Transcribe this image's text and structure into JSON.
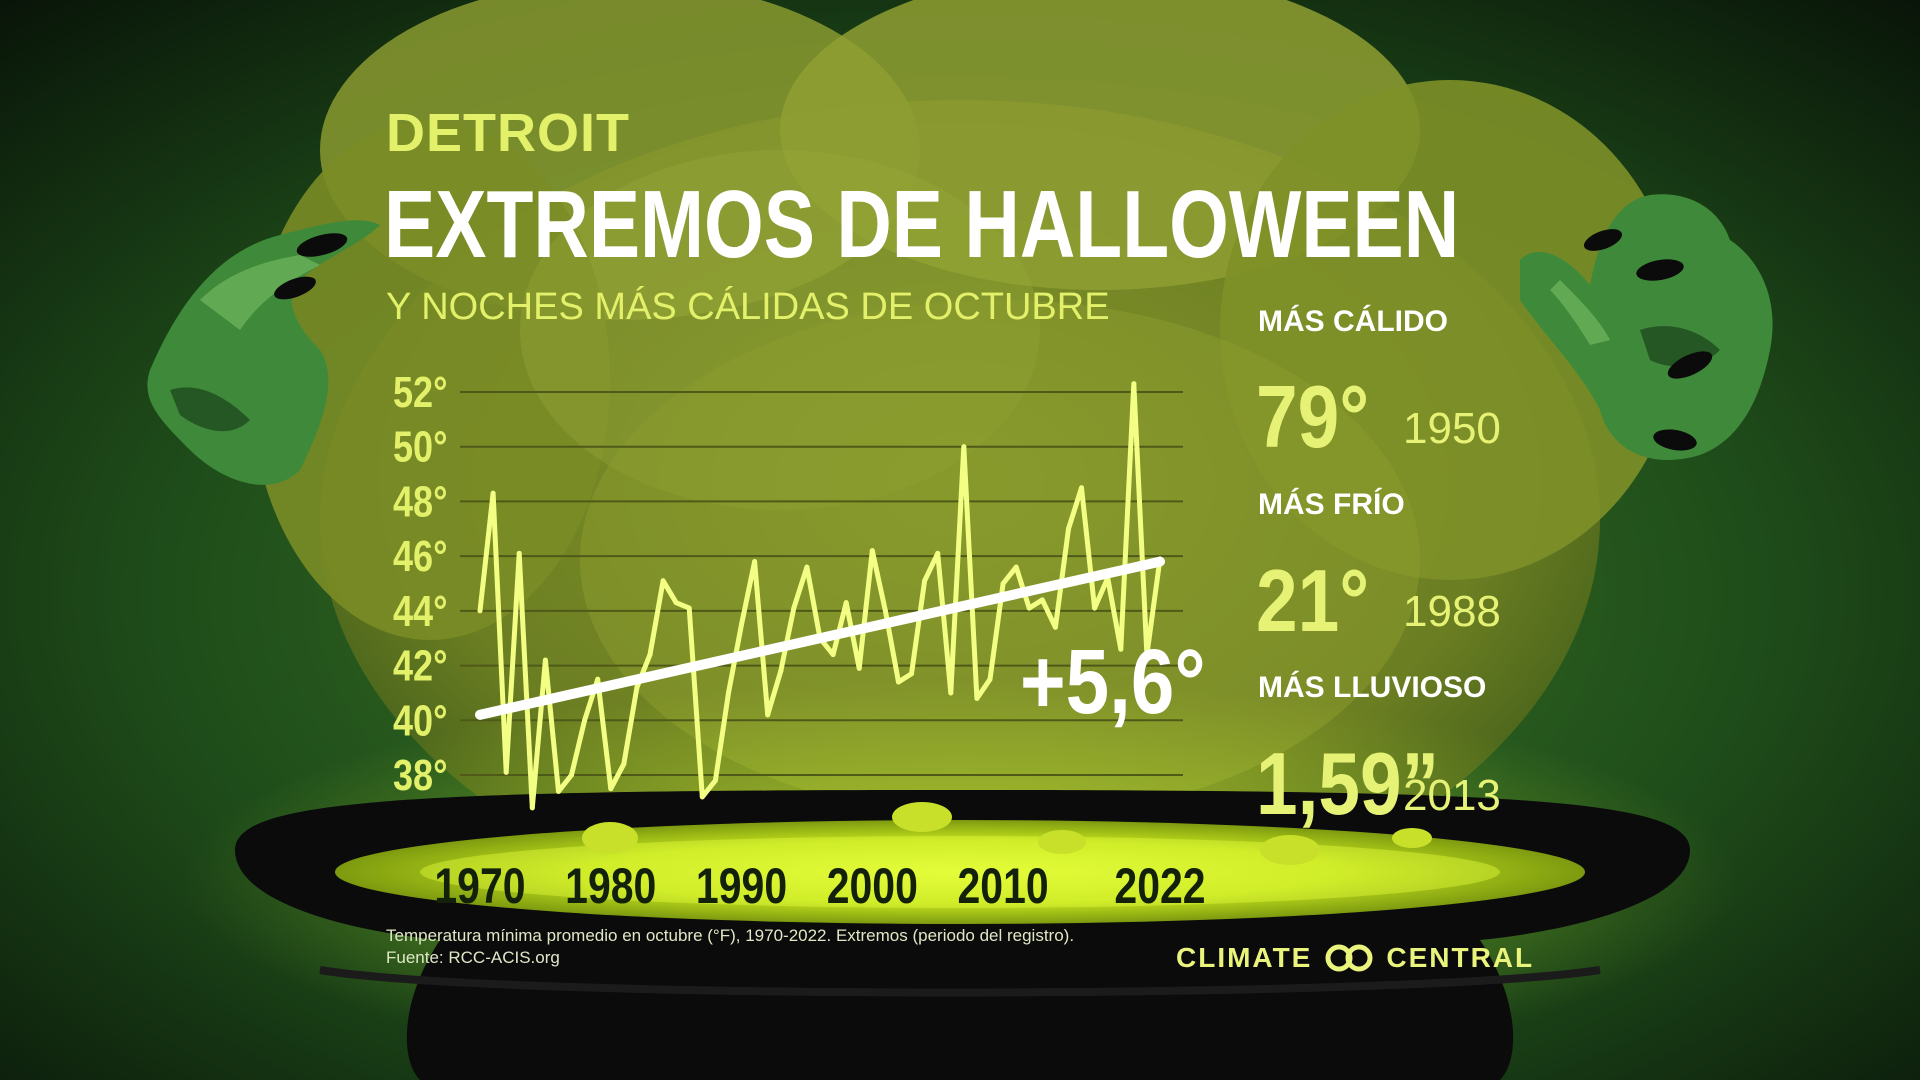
{
  "header": {
    "city": "DETROIT",
    "title": "EXTREMOS DE HALLOWEEN",
    "subtitle": "Y NOCHES MÁS CÁLIDAS DE OCTUBRE"
  },
  "stats": {
    "warmest": {
      "label": "MÁS CÁLIDO",
      "value": "79°",
      "year": "1950"
    },
    "coldest": {
      "label": "MÁS FRÍO",
      "value": "21°",
      "year": "1988"
    },
    "wettest": {
      "label": "MÁS LLUVIOSO",
      "value": "1,59”",
      "year": "2013"
    }
  },
  "footnote": {
    "line1": "Temperatura mínima promedio en octubre (°F), 1970-2022. Extremos (periodo del registro).",
    "line2": "Fuente: RCC-ACIS.org"
  },
  "brand": {
    "left": "CLIMATE",
    "right": "CENTRAL",
    "logo_icon": "interlocking-rings-icon"
  },
  "colors": {
    "accent": "#e2f06a",
    "line": "#f3ff84",
    "trend": "#ffffff",
    "gridline": "#4f5a18"
  },
  "chart_data": {
    "type": "line",
    "trend_label": "+5,6°",
    "y_ticks": [
      38,
      40,
      42,
      44,
      46,
      48,
      50,
      52
    ],
    "y_tick_labels": [
      "38°",
      "40°",
      "42°",
      "44°",
      "46°",
      "48°",
      "50°",
      "52°"
    ],
    "x_tick_labels": [
      "1970",
      "1980",
      "1990",
      "2000",
      "2010",
      "2022"
    ],
    "x_tick_values": [
      1970,
      1980,
      1990,
      2000,
      2010,
      2022
    ],
    "xlim": [
      1970,
      2022
    ],
    "ylim": [
      36.5,
      52.5
    ],
    "grid": true,
    "series": [
      {
        "x": [
          1970,
          1971,
          1972,
          1973,
          1974,
          1975,
          1976,
          1977,
          1978,
          1979,
          1980,
          1981,
          1982,
          1983,
          1984,
          1985,
          1986,
          1987,
          1988,
          1989,
          1990,
          1991,
          1992,
          1993,
          1994,
          1995,
          1996,
          1997,
          1998,
          1999,
          2000,
          2001,
          2002,
          2003,
          2004,
          2005,
          2006,
          2007,
          2008,
          2009,
          2010,
          2011,
          2012,
          2013,
          2014,
          2015,
          2016,
          2017,
          2018,
          2019,
          2020,
          2021,
          2022
        ],
        "values": [
          44.0,
          48.3,
          38.1,
          46.1,
          36.8,
          42.2,
          37.4,
          38.0,
          40.0,
          41.5,
          37.5,
          38.4,
          41.2,
          42.4,
          45.1,
          44.3,
          44.1,
          37.2,
          37.8,
          41.0,
          43.5,
          45.8,
          40.2,
          41.8,
          44.1,
          45.6,
          43.0,
          42.4,
          44.3,
          41.9,
          46.2,
          44.0,
          41.4,
          41.7,
          45.1,
          46.1,
          41.0,
          50.0,
          40.8,
          41.5,
          45.0,
          45.6,
          44.1,
          44.4,
          43.4,
          47.0,
          48.5,
          44.1,
          45.2,
          42.6,
          52.3,
          42.4,
          45.9
        ]
      }
    ],
    "trend": {
      "x": [
        1970,
        2022
      ],
      "values": [
        40.2,
        45.8
      ]
    },
    "xlabel": "",
    "ylabel": ""
  }
}
